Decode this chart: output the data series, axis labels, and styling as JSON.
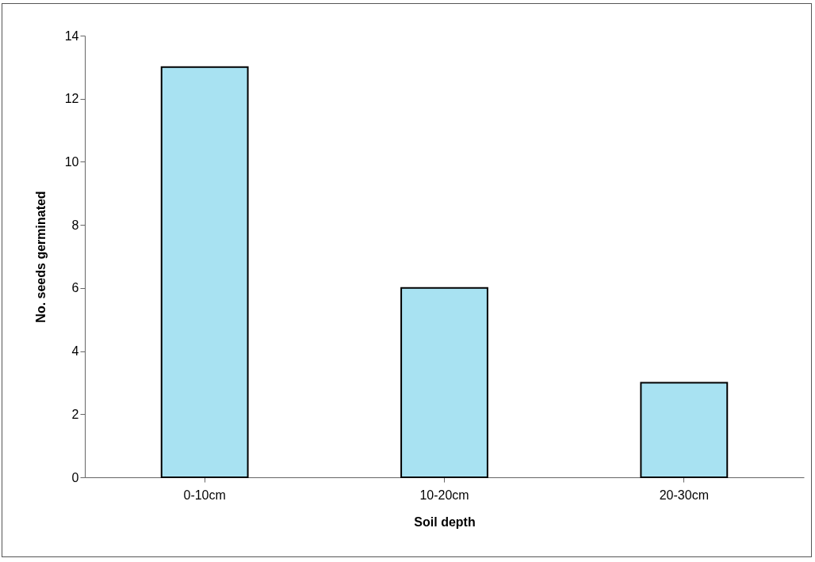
{
  "chart_data": {
    "type": "bar",
    "xlabel": "Soil depth",
    "ylabel": "No. seeds germinated",
    "categories": [
      "0-10cm",
      "10-20cm",
      "20-30cm"
    ],
    "values": [
      13,
      6,
      3
    ],
    "color": "#a8e2f2",
    "ylim": [
      0,
      14
    ],
    "yticks": [
      0,
      2,
      4,
      6,
      8,
      10,
      12,
      14
    ],
    "grid": false
  }
}
